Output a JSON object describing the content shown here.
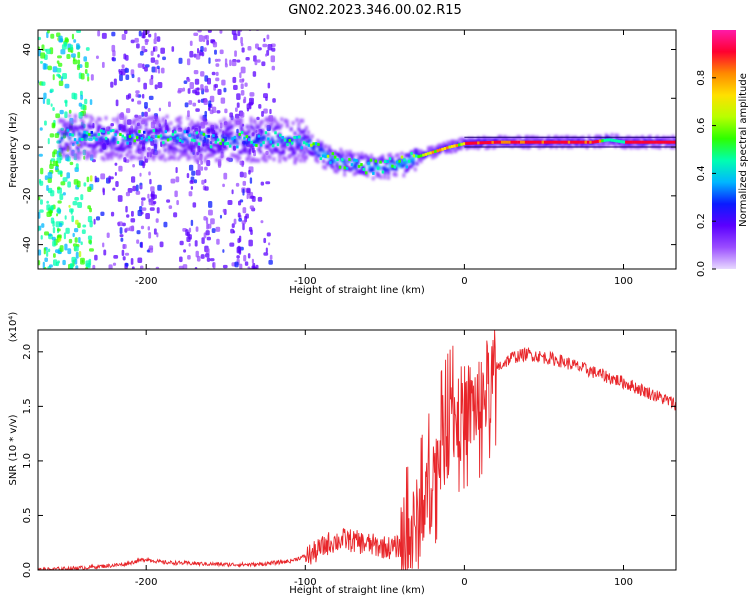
{
  "title": "GN02.2023.346.00.02.R15",
  "chart_data": [
    {
      "type": "heatmap",
      "xlabel": "Height of straight line (km)",
      "ylabel": "Frequency (Hz)",
      "xlim": [
        -268,
        133
      ],
      "ylim": [
        -50,
        48
      ],
      "x_ticks": [
        -200,
        -100,
        0,
        100
      ],
      "x_tick_labels": [
        "-200",
        "-100",
        "0",
        "100"
      ],
      "y_ticks": [
        -40,
        -20,
        0,
        20,
        40
      ],
      "y_tick_labels": [
        "-40",
        "-20",
        "0",
        "20",
        "40"
      ],
      "grid": false,
      "colorbar": {
        "label": "Normalized spectral amplitude",
        "range": [
          0.0,
          1.0
        ],
        "ticks": [
          0.0,
          0.2,
          0.4,
          0.6,
          0.8
        ],
        "tick_labels": [
          "0.0",
          "0.2",
          "0.4",
          "0.6",
          "0.8"
        ],
        "colormap": [
          "#e8d9ff",
          "#9a4dff",
          "#5b00ff",
          "#0a1bff",
          "#00b7ff",
          "#00ffb0",
          "#2eff00",
          "#b8ff00",
          "#ffe000",
          "#ff8a00",
          "#ff0030",
          "#ff1aa8"
        ]
      },
      "ridge": {
        "x": [
          -240,
          -200,
          -160,
          -120,
          -100,
          -90,
          -80,
          -70,
          -60,
          -50,
          -40,
          -30,
          -20,
          -10,
          0,
          20,
          40,
          60,
          80,
          90,
          100,
          133
        ],
        "y": [
          4,
          4,
          3,
          3,
          2,
          -3,
          -6,
          -7,
          -8,
          -8,
          -7,
          -4,
          -2,
          0,
          1.5,
          2,
          2,
          2,
          2,
          3,
          2,
          2
        ]
      }
    },
    {
      "type": "line",
      "xlabel": "Height of straight line (km)",
      "ylabel": "SNR (10 * v/v)",
      "y_multiplier": "(x10⁴)",
      "xlim": [
        -268,
        133
      ],
      "ylim": [
        0,
        2.2
      ],
      "x_ticks": [
        -200,
        -100,
        0,
        100
      ],
      "x_tick_labels": [
        "-200",
        "-100",
        "0",
        "100"
      ],
      "y_ticks": [
        0.0,
        0.5,
        1.0,
        1.5,
        2.0
      ],
      "y_tick_labels": [
        "0.0",
        "0.5",
        "1.0",
        "1.5",
        "2.0"
      ],
      "grid": false,
      "color": "#e8262a",
      "series": [
        {
          "x": [
            -268,
            -240,
            -215,
            -200,
            -190,
            -170,
            -150,
            -130,
            -110,
            -95,
            -85,
            -75,
            -65,
            -55,
            -45,
            -35,
            -30,
            -25,
            -20,
            -15,
            -10,
            -5,
            0,
            5,
            10,
            15,
            20,
            30,
            40,
            60,
            80,
            100,
            120,
            133
          ],
          "values": [
            0.0,
            0.02,
            0.05,
            0.1,
            0.07,
            0.06,
            0.05,
            0.05,
            0.08,
            0.15,
            0.25,
            0.28,
            0.25,
            0.22,
            0.2,
            0.25,
            0.4,
            0.6,
            0.85,
            1.1,
            1.3,
            1.4,
            1.45,
            1.5,
            1.55,
            1.7,
            1.85,
            1.95,
            1.98,
            1.92,
            1.82,
            1.72,
            1.6,
            1.52
          ]
        }
      ]
    }
  ]
}
